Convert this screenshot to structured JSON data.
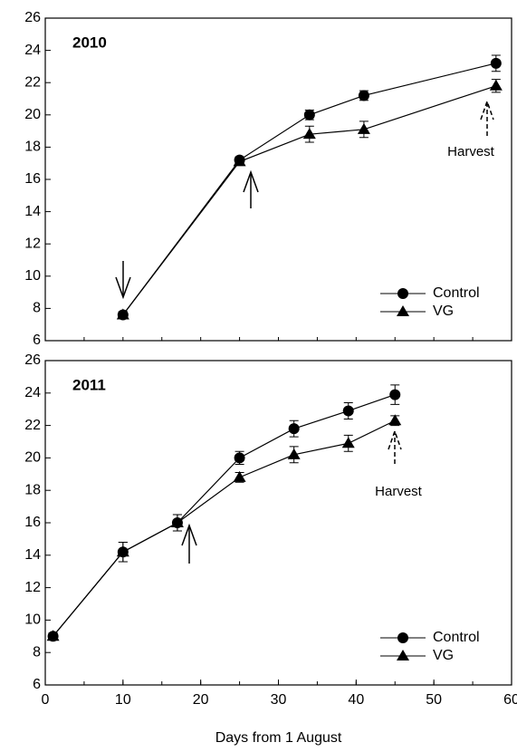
{
  "chart_data": [
    {
      "type": "line",
      "title": "2010",
      "legend": "lower right",
      "x": [
        10,
        25,
        34,
        41,
        58
      ],
      "series": [
        {
          "name": "Control",
          "color": "#000000",
          "marker": "circle",
          "values": [
            7.6,
            17.2,
            20.0,
            21.2,
            23.2
          ],
          "errors": [
            0.2,
            0.2,
            0.3,
            0.3,
            0.5
          ]
        },
        {
          "name": "VG",
          "color": "#000000",
          "marker": "triangle",
          "values": [
            7.6,
            17.1,
            18.8,
            19.1,
            21.8
          ],
          "errors": [
            0.2,
            0.2,
            0.5,
            0.5,
            0.4
          ]
        }
      ],
      "xlim": [
        0,
        60
      ],
      "ylim": [
        6,
        26
      ],
      "yticks": [
        6,
        8,
        10,
        12,
        14,
        16,
        18,
        20,
        22,
        24,
        26
      ],
      "annotation": "Harvest"
    },
    {
      "type": "line",
      "title": "2011",
      "legend": "lower right",
      "xlabel": "Days from 1 August",
      "x": [
        1,
        10,
        17,
        25,
        32,
        39,
        45
      ],
      "series": [
        {
          "name": "Control",
          "color": "#000000",
          "marker": "circle",
          "values": [
            9.0,
            14.2,
            16.0,
            20.0,
            21.8,
            22.9,
            23.9
          ],
          "errors": [
            0.2,
            0.6,
            0.5,
            0.4,
            0.5,
            0.5,
            0.6
          ]
        },
        {
          "name": "VG",
          "color": "#000000",
          "marker": "triangle",
          "values": [
            9.0,
            14.2,
            16.0,
            18.8,
            20.2,
            20.9,
            22.3
          ],
          "errors": [
            0.2,
            0.6,
            0.5,
            0.3,
            0.5,
            0.5,
            0.3
          ]
        }
      ],
      "xlim": [
        0,
        60
      ],
      "xticks": [
        0,
        10,
        20,
        30,
        40,
        50,
        60
      ],
      "ylim": [
        6,
        26
      ],
      "yticks": [
        6,
        8,
        10,
        12,
        14,
        16,
        18,
        20,
        22,
        24,
        26
      ],
      "annotation": "Harvest"
    }
  ]
}
